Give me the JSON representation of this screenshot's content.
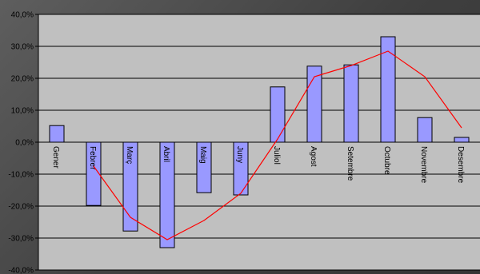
{
  "chart_data": {
    "type": "bar",
    "title": "",
    "xlabel": "",
    "ylabel": "",
    "categories": [
      "Gener",
      "Febrer",
      "Març",
      "Abril",
      "Maig",
      "Juny",
      "Juliol",
      "Agost",
      "Setembre",
      "Octubre",
      "Novembre",
      "Desembre"
    ],
    "series": [
      {
        "type": "bar",
        "values": [
          5.2,
          -19.8,
          -27.8,
          -33.0,
          -15.8,
          -16.5,
          17.3,
          23.8,
          24.2,
          33.0,
          7.7,
          1.5
        ]
      },
      {
        "type": "line",
        "values": [
          null,
          -7.5,
          -23.5,
          -30.5,
          -24.5,
          -16.0,
          1.0,
          20.5,
          24.0,
          28.5,
          20.5,
          4.5
        ]
      }
    ],
    "ylim": [
      -40,
      40
    ],
    "yticks": [
      -40,
      -30,
      -20,
      -10,
      0,
      10,
      20,
      30,
      40
    ],
    "ytick_labels": [
      "-40,0%",
      "-30,0%",
      "-20,0%",
      "-10,0%",
      "0,0%",
      "10,0%",
      "20,0%",
      "30,0%",
      "40,0%"
    ],
    "grid": true,
    "legend": "none",
    "colors": {
      "plot_background": "#c0c0c0",
      "bar_fill": "#9999ff",
      "bar_stroke": "#000000",
      "line": "#ff0000",
      "gridline": "#000000"
    }
  }
}
